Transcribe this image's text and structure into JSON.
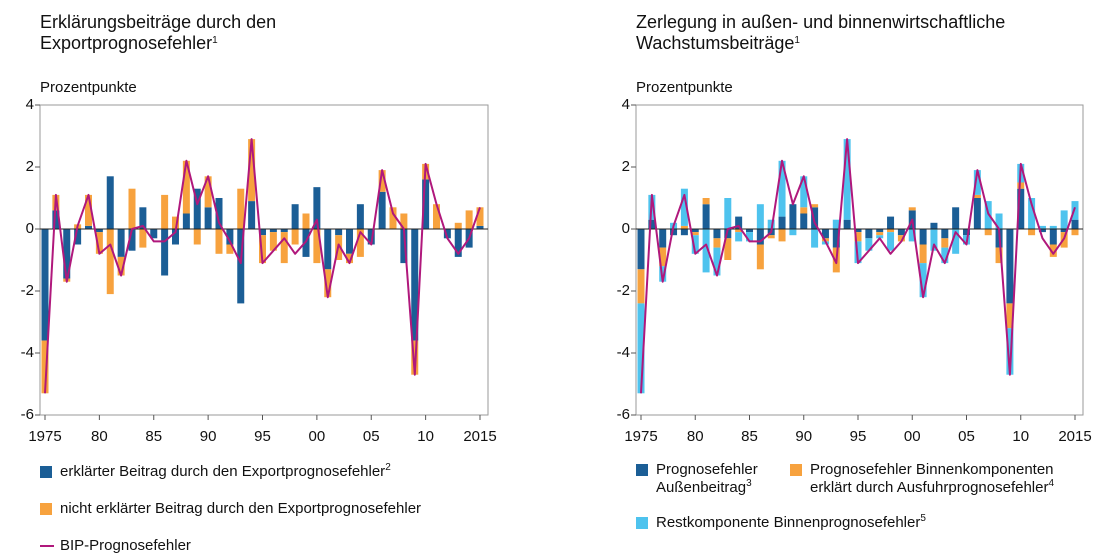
{
  "chart_data": [
    {
      "type": "bar",
      "stacked": true,
      "title": "Erklärungsbeiträge durch den Exportprognosefehler",
      "title_note": "1",
      "y_label": "Prozentpunkte",
      "categories": [
        "1975",
        null,
        null,
        null,
        null,
        "80",
        null,
        null,
        null,
        null,
        "85",
        null,
        null,
        null,
        null,
        "90",
        null,
        null,
        null,
        null,
        "95",
        null,
        null,
        null,
        null,
        "00",
        null,
        null,
        null,
        null,
        "05",
        null,
        null,
        null,
        null,
        "10",
        null,
        null,
        null,
        null,
        "2015"
      ],
      "ylim": [
        -6,
        4
      ],
      "yticks": [
        -6,
        -4,
        -2,
        0,
        2,
        4
      ],
      "series": [
        {
          "name": "erklärter Beitrag durch den Exportprognosefehler",
          "note": "2",
          "color": "#1b5e96",
          "type": "bar",
          "values": [
            -3.6,
            0.6,
            -1.6,
            -0.5,
            0.1,
            -0.1,
            1.7,
            -0.9,
            -0.7,
            0.7,
            -0.3,
            -1.5,
            -0.5,
            0.5,
            1.3,
            0.7,
            1.0,
            -0.5,
            -2.4,
            0.9,
            -0.2,
            -0.1,
            -0.1,
            0.8,
            -0.9,
            1.35,
            -1.3,
            -0.2,
            -0.8,
            0.8,
            -0.5,
            1.2,
            0.0,
            -1.1,
            -3.6,
            1.6,
            0.0,
            -0.3,
            -0.9,
            -0.6,
            0.1
          ]
        },
        {
          "name": "nicht erklärter Beitrag durch den Exportprognosefehler",
          "color": "#f7a23e",
          "type": "bar",
          "values": [
            -1.7,
            0.5,
            -0.1,
            0.15,
            1.0,
            -0.7,
            -2.1,
            -0.6,
            1.3,
            -0.6,
            0.0,
            1.1,
            0.4,
            1.7,
            -0.5,
            1.0,
            -0.8,
            -0.3,
            1.3,
            2.0,
            -0.9,
            -0.6,
            -1.0,
            -0.5,
            0.5,
            -1.1,
            -0.9,
            -0.8,
            -0.3,
            -0.9,
            0.0,
            0.7,
            0.7,
            0.5,
            -1.1,
            0.5,
            0.8,
            0.0,
            0.2,
            0.6,
            0.6
          ]
        },
        {
          "name": "BIP-Prognosefehler",
          "color": "#b0187c",
          "type": "line",
          "values": [
            -5.3,
            1.1,
            -1.7,
            0.1,
            1.1,
            -0.8,
            -0.5,
            -1.5,
            0.0,
            0.1,
            -0.4,
            -0.4,
            -0.1,
            2.2,
            0.8,
            1.7,
            0.2,
            -0.4,
            -1.1,
            2.9,
            -1.1,
            -0.7,
            -0.3,
            -0.8,
            -0.4,
            0.3,
            -2.2,
            -0.5,
            -1.1,
            -0.1,
            -0.5,
            1.9,
            0.5,
            0.0,
            -4.7,
            2.1,
            0.8,
            -0.3,
            -0.8,
            -0.3,
            0.7
          ]
        }
      ]
    },
    {
      "type": "bar",
      "stacked": true,
      "title": "Zerlegung in außen- und binnenwirtschaftliche Wachstumsbeiträge",
      "title_note": "1",
      "y_label": "Prozentpunkte",
      "categories": [
        "1975",
        null,
        null,
        null,
        null,
        "80",
        null,
        null,
        null,
        null,
        "85",
        null,
        null,
        null,
        null,
        "90",
        null,
        null,
        null,
        null,
        "95",
        null,
        null,
        null,
        null,
        "00",
        null,
        null,
        null,
        null,
        "05",
        null,
        null,
        null,
        null,
        "10",
        null,
        null,
        null,
        null,
        "2015"
      ],
      "ylim": [
        -6,
        4
      ],
      "yticks": [
        -6,
        -4,
        -2,
        0,
        2,
        4
      ],
      "series": [
        {
          "name": "Prognosefehler Außenbeitrag",
          "note": "3",
          "color": "#1b5e96",
          "type": "bar",
          "values": [
            -1.3,
            0.3,
            -0.6,
            -0.2,
            -0.2,
            -0.1,
            0.8,
            -0.3,
            -0.3,
            0.4,
            -0.1,
            -0.5,
            -0.2,
            0.4,
            0.8,
            0.5,
            0.7,
            -0.3,
            -0.6,
            0.3,
            -0.1,
            -0.3,
            -0.1,
            0.4,
            -0.2,
            0.6,
            -0.5,
            0.2,
            -0.3,
            0.7,
            -0.2,
            1.0,
            0.0,
            -0.6,
            -2.4,
            1.3,
            0.0,
            -0.1,
            -0.5,
            -0.1,
            0.3
          ]
        },
        {
          "name": "Prognosefehler Binnenkomponenten erklärt durch Ausfuhrprognosefehler",
          "note": "4",
          "color": "#f7a23e",
          "type": "bar",
          "values": [
            -1.1,
            0.0,
            -0.6,
            0.0,
            0.1,
            -0.1,
            0.2,
            -0.3,
            -0.7,
            -0.1,
            0.0,
            -0.8,
            -0.1,
            -0.4,
            0.0,
            0.2,
            0.1,
            -0.1,
            -0.8,
            0.0,
            -0.3,
            0.0,
            -0.1,
            -0.1,
            -0.2,
            0.1,
            -0.6,
            0.0,
            -0.3,
            0.0,
            0.0,
            0.1,
            -0.2,
            -0.5,
            -0.8,
            0.2,
            -0.2,
            0.0,
            -0.4,
            -0.5,
            -0.2
          ]
        },
        {
          "name": "Restkomponente Binnenprognosefehler",
          "note": "5",
          "color": "#4ec3ee",
          "type": "bar",
          "values": [
            -2.9,
            0.8,
            -0.5,
            0.2,
            1.2,
            -0.6,
            -1.4,
            -0.9,
            1.0,
            -0.3,
            -0.3,
            0.8,
            0.3,
            1.8,
            -0.2,
            1.0,
            -0.6,
            -0.1,
            0.3,
            2.6,
            -0.7,
            -0.4,
            -0.1,
            -0.6,
            0.0,
            -0.4,
            -1.1,
            -0.7,
            -0.5,
            -0.8,
            -0.3,
            0.8,
            0.9,
            0.5,
            -1.5,
            0.6,
            1.0,
            0.1,
            0.1,
            0.6,
            0.6
          ]
        },
        {
          "name": "BIP-Prognosefehler",
          "color": "#b0187c",
          "type": "line",
          "values": [
            -5.3,
            1.1,
            -1.7,
            0.1,
            1.1,
            -0.8,
            -0.5,
            -1.5,
            0.0,
            0.1,
            -0.4,
            -0.4,
            -0.1,
            2.2,
            0.8,
            1.7,
            0.2,
            -0.4,
            -1.1,
            2.9,
            -1.1,
            -0.7,
            -0.3,
            -0.8,
            -0.4,
            0.3,
            -2.2,
            -0.5,
            -1.1,
            -0.1,
            -0.5,
            1.9,
            0.5,
            0.0,
            -4.7,
            2.1,
            0.8,
            -0.3,
            -0.8,
            -0.3,
            0.7
          ]
        }
      ]
    }
  ]
}
